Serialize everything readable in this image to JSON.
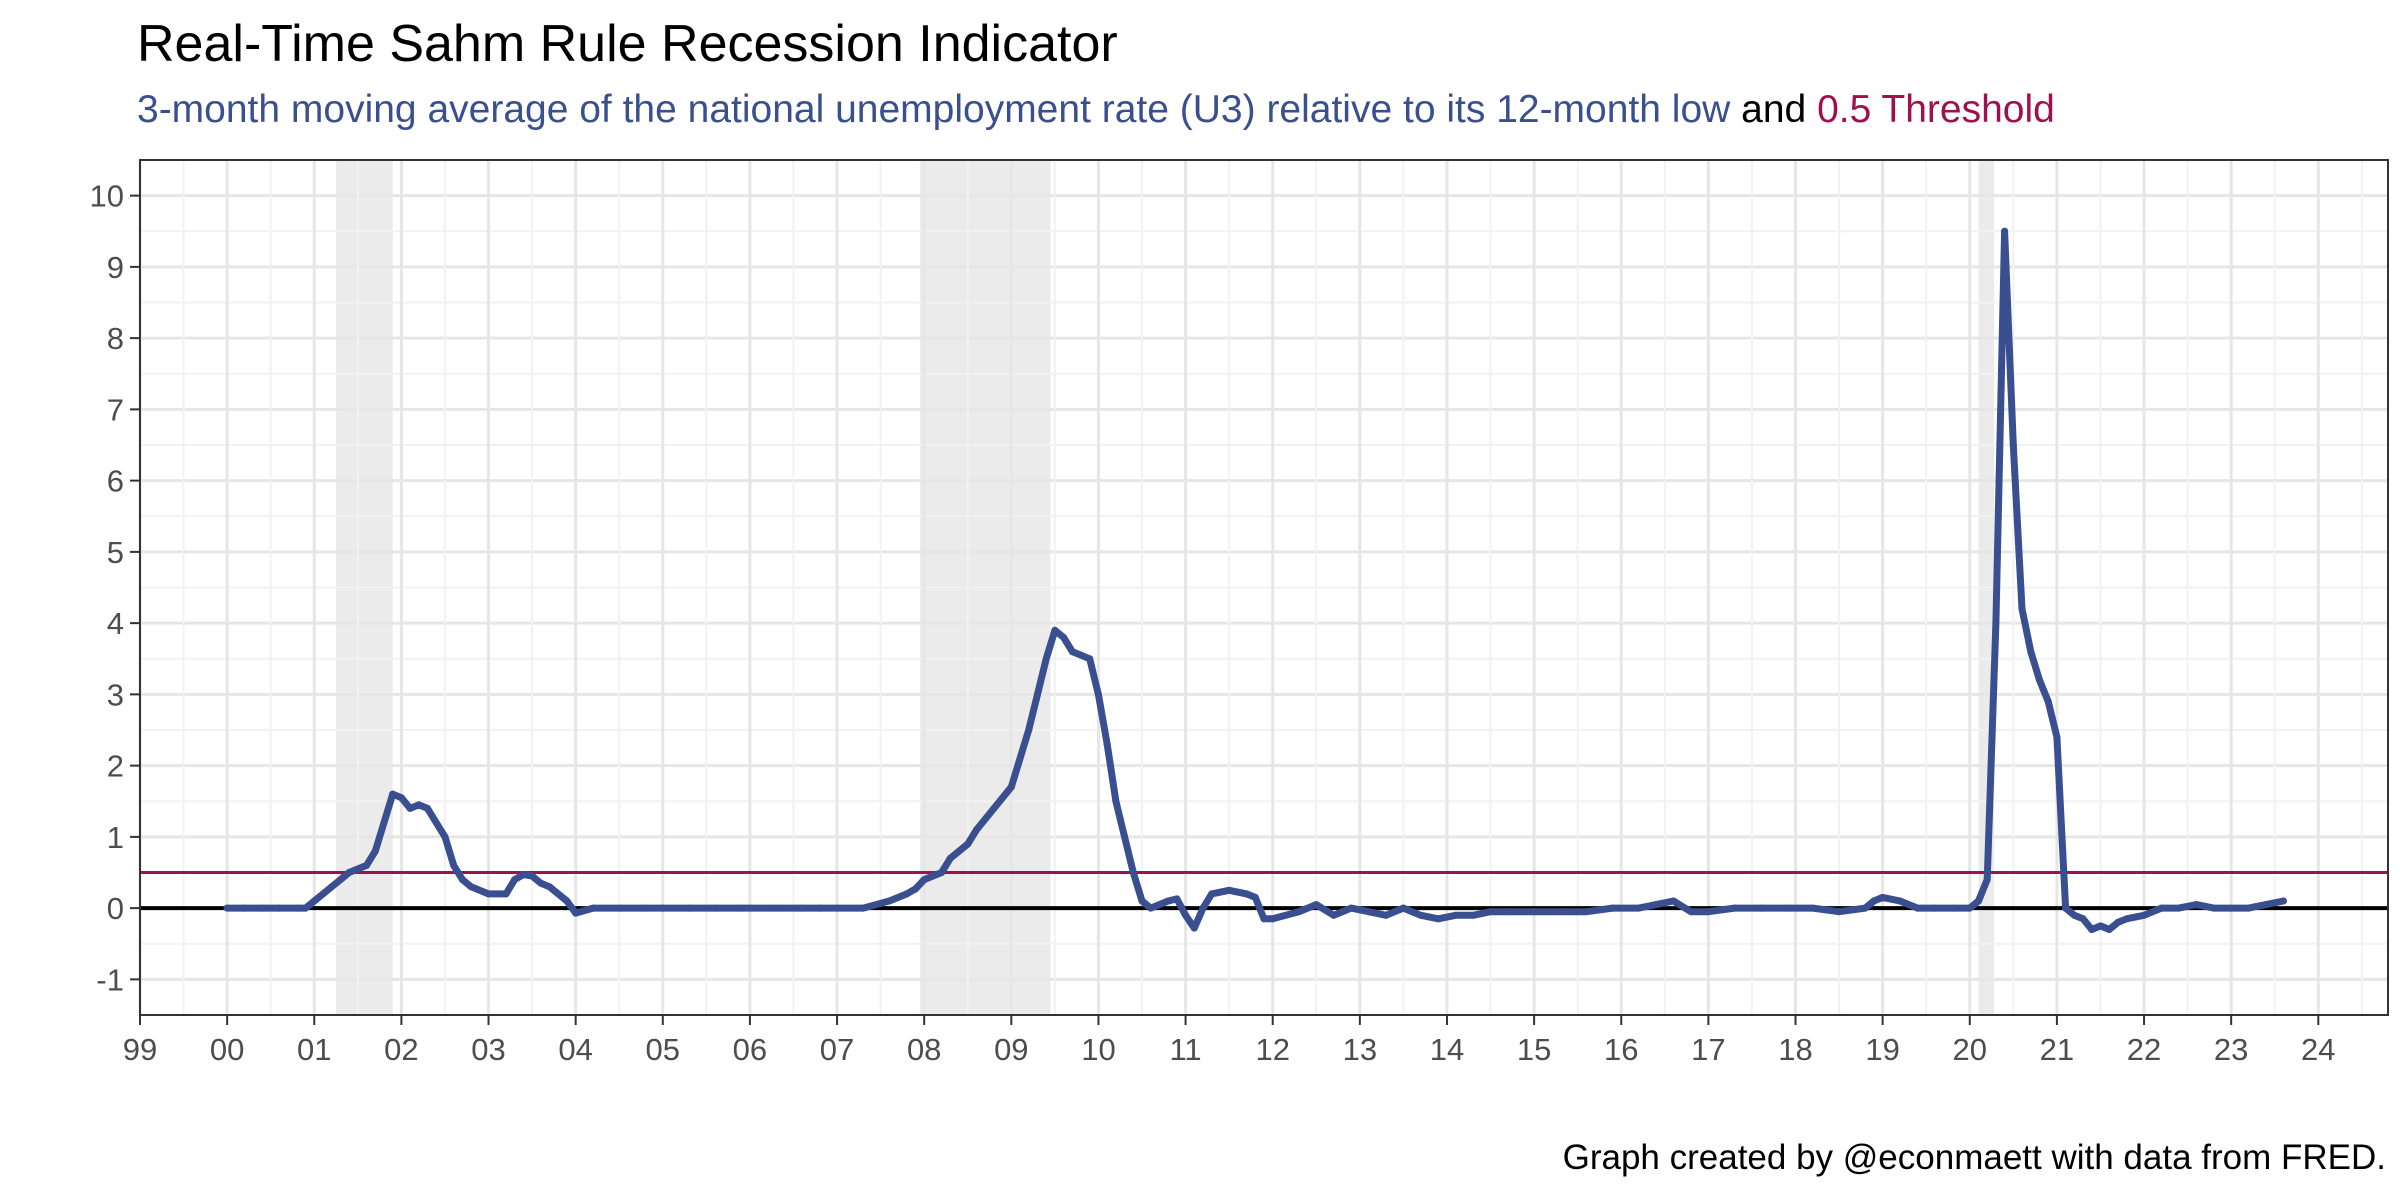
{
  "colors": {
    "series": "#3a4f8f",
    "threshold": "#a0104e",
    "subtitle_blue": "#3a4f8f",
    "recession_shade": "#ebebeb",
    "grid_major": "#e6e6e6",
    "grid_minor": "#f2f2f2"
  },
  "title": "Real-Time Sahm Rule Recession Indicator",
  "subtitle": {
    "part1": "3-month moving average of the national unemployment rate (U3) relative to its 12-month low",
    "part2": " and ",
    "part3": "0.5 Threshold"
  },
  "caption": "Graph created by @econmaett with data from FRED.",
  "chart_data": {
    "type": "line",
    "title": "Real-Time Sahm Rule Recession Indicator",
    "xlim": [
      1999,
      2024.8
    ],
    "ylim": [
      -1.5,
      10.5
    ],
    "x_ticks": [
      1999,
      2000,
      2001,
      2002,
      2003,
      2004,
      2005,
      2006,
      2007,
      2008,
      2009,
      2010,
      2011,
      2012,
      2013,
      2014,
      2015,
      2016,
      2017,
      2018,
      2019,
      2020,
      2021,
      2022,
      2023,
      2024
    ],
    "x_tick_labels": [
      "99",
      "00",
      "01",
      "02",
      "03",
      "04",
      "05",
      "06",
      "07",
      "08",
      "09",
      "10",
      "11",
      "12",
      "13",
      "14",
      "15",
      "16",
      "17",
      "18",
      "19",
      "20",
      "21",
      "22",
      "23",
      "24"
    ],
    "y_ticks": [
      -1,
      0,
      1,
      2,
      3,
      4,
      5,
      6,
      7,
      8,
      9,
      10
    ],
    "y_tick_labels": [
      "-1",
      "0",
      "1",
      "2",
      "3",
      "4",
      "5",
      "6",
      "7",
      "8",
      "9",
      "10"
    ],
    "grid": true,
    "legend": "none",
    "recessions": [
      [
        2001.25,
        2001.9
      ],
      [
        2007.95,
        2009.45
      ],
      [
        2020.1,
        2020.28
      ]
    ],
    "hlines": [
      {
        "name": "0.5 Threshold",
        "y": 0.5
      },
      {
        "y": 0
      }
    ],
    "series": [
      {
        "x": [
          2000.0,
          2000.2,
          2000.4,
          2000.6,
          2000.8,
          2000.9,
          2001.0,
          2001.2,
          2001.4,
          2001.6,
          2001.7,
          2001.8,
          2001.9,
          2002.0,
          2002.1,
          2002.2,
          2002.3,
          2002.5,
          2002.6,
          2002.7,
          2002.8,
          2003.0,
          2003.2,
          2003.3,
          2003.4,
          2003.5,
          2003.6,
          2003.7,
          2003.9,
          2004.0,
          2004.2,
          2004.5,
          2004.8,
          2005.0,
          2005.3,
          2005.6,
          2005.9,
          2006.0,
          2006.3,
          2006.6,
          2006.8,
          2007.0,
          2007.3,
          2007.6,
          2007.8,
          2007.9,
          2008.0,
          2008.2,
          2008.3,
          2008.5,
          2008.6,
          2008.8,
          2009.0,
          2009.1,
          2009.2,
          2009.3,
          2009.4,
          2009.5,
          2009.6,
          2009.7,
          2009.8,
          2009.9,
          2010.0,
          2010.1,
          2010.2,
          2010.3,
          2010.4,
          2010.5,
          2010.6,
          2010.8,
          2010.9,
          2011.0,
          2011.1,
          2011.2,
          2011.3,
          2011.5,
          2011.7,
          2011.8,
          2011.9,
          2012.0,
          2012.3,
          2012.5,
          2012.7,
          2012.9,
          2013.1,
          2013.3,
          2013.5,
          2013.7,
          2013.9,
          2014.1,
          2014.3,
          2014.5,
          2014.7,
          2015.0,
          2015.3,
          2015.6,
          2015.9,
          2016.2,
          2016.4,
          2016.6,
          2016.8,
          2017.0,
          2017.3,
          2017.6,
          2017.9,
          2018.2,
          2018.5,
          2018.8,
          2018.9,
          2019.0,
          2019.2,
          2019.4,
          2019.6,
          2019.8,
          2020.0,
          2020.1,
          2020.2,
          2020.3,
          2020.4,
          2020.5,
          2020.6,
          2020.7,
          2020.8,
          2020.9,
          2021.0,
          2021.1,
          2021.2,
          2021.3,
          2021.4,
          2021.5,
          2021.6,
          2021.7,
          2021.8,
          2022.0,
          2022.2,
          2022.4,
          2022.6,
          2022.8,
          2023.0,
          2023.2,
          2023.4,
          2023.6
        ],
        "values": [
          0.0,
          0.0,
          0.0,
          0.0,
          0.0,
          0.0,
          0.1,
          0.3,
          0.5,
          0.6,
          0.8,
          1.2,
          1.6,
          1.55,
          1.4,
          1.45,
          1.4,
          1.0,
          0.6,
          0.4,
          0.3,
          0.2,
          0.2,
          0.4,
          0.47,
          0.45,
          0.35,
          0.3,
          0.1,
          -0.07,
          0.0,
          0.0,
          0.0,
          0.0,
          0.0,
          0.0,
          0.0,
          0.0,
          0.0,
          0.0,
          0.0,
          0.0,
          0.0,
          0.1,
          0.2,
          0.27,
          0.4,
          0.5,
          0.7,
          0.9,
          1.1,
          1.4,
          1.7,
          2.1,
          2.5,
          3.0,
          3.5,
          3.9,
          3.8,
          3.6,
          3.55,
          3.5,
          3.0,
          2.3,
          1.5,
          1.0,
          0.5,
          0.1,
          0.0,
          0.1,
          0.13,
          -0.1,
          -0.28,
          0.0,
          0.2,
          0.25,
          0.2,
          0.15,
          -0.15,
          -0.15,
          -0.05,
          0.05,
          -0.1,
          0.0,
          -0.05,
          -0.1,
          0.0,
          -0.1,
          -0.15,
          -0.1,
          -0.1,
          -0.05,
          -0.05,
          -0.05,
          -0.05,
          -0.05,
          0.0,
          0.0,
          0.05,
          0.1,
          -0.05,
          -0.05,
          0.0,
          0.0,
          0.0,
          0.0,
          -0.05,
          0.0,
          0.1,
          0.15,
          0.1,
          0.0,
          0.0,
          0.0,
          0.0,
          0.1,
          0.4,
          4.0,
          9.5,
          6.5,
          4.2,
          3.6,
          3.2,
          2.9,
          2.4,
          0.0,
          -0.1,
          -0.15,
          -0.3,
          -0.25,
          -0.3,
          -0.2,
          -0.15,
          -0.1,
          0.0,
          0.0,
          0.05,
          0.0,
          0.0,
          0.0,
          0.05,
          0.1
        ]
      }
    ]
  }
}
